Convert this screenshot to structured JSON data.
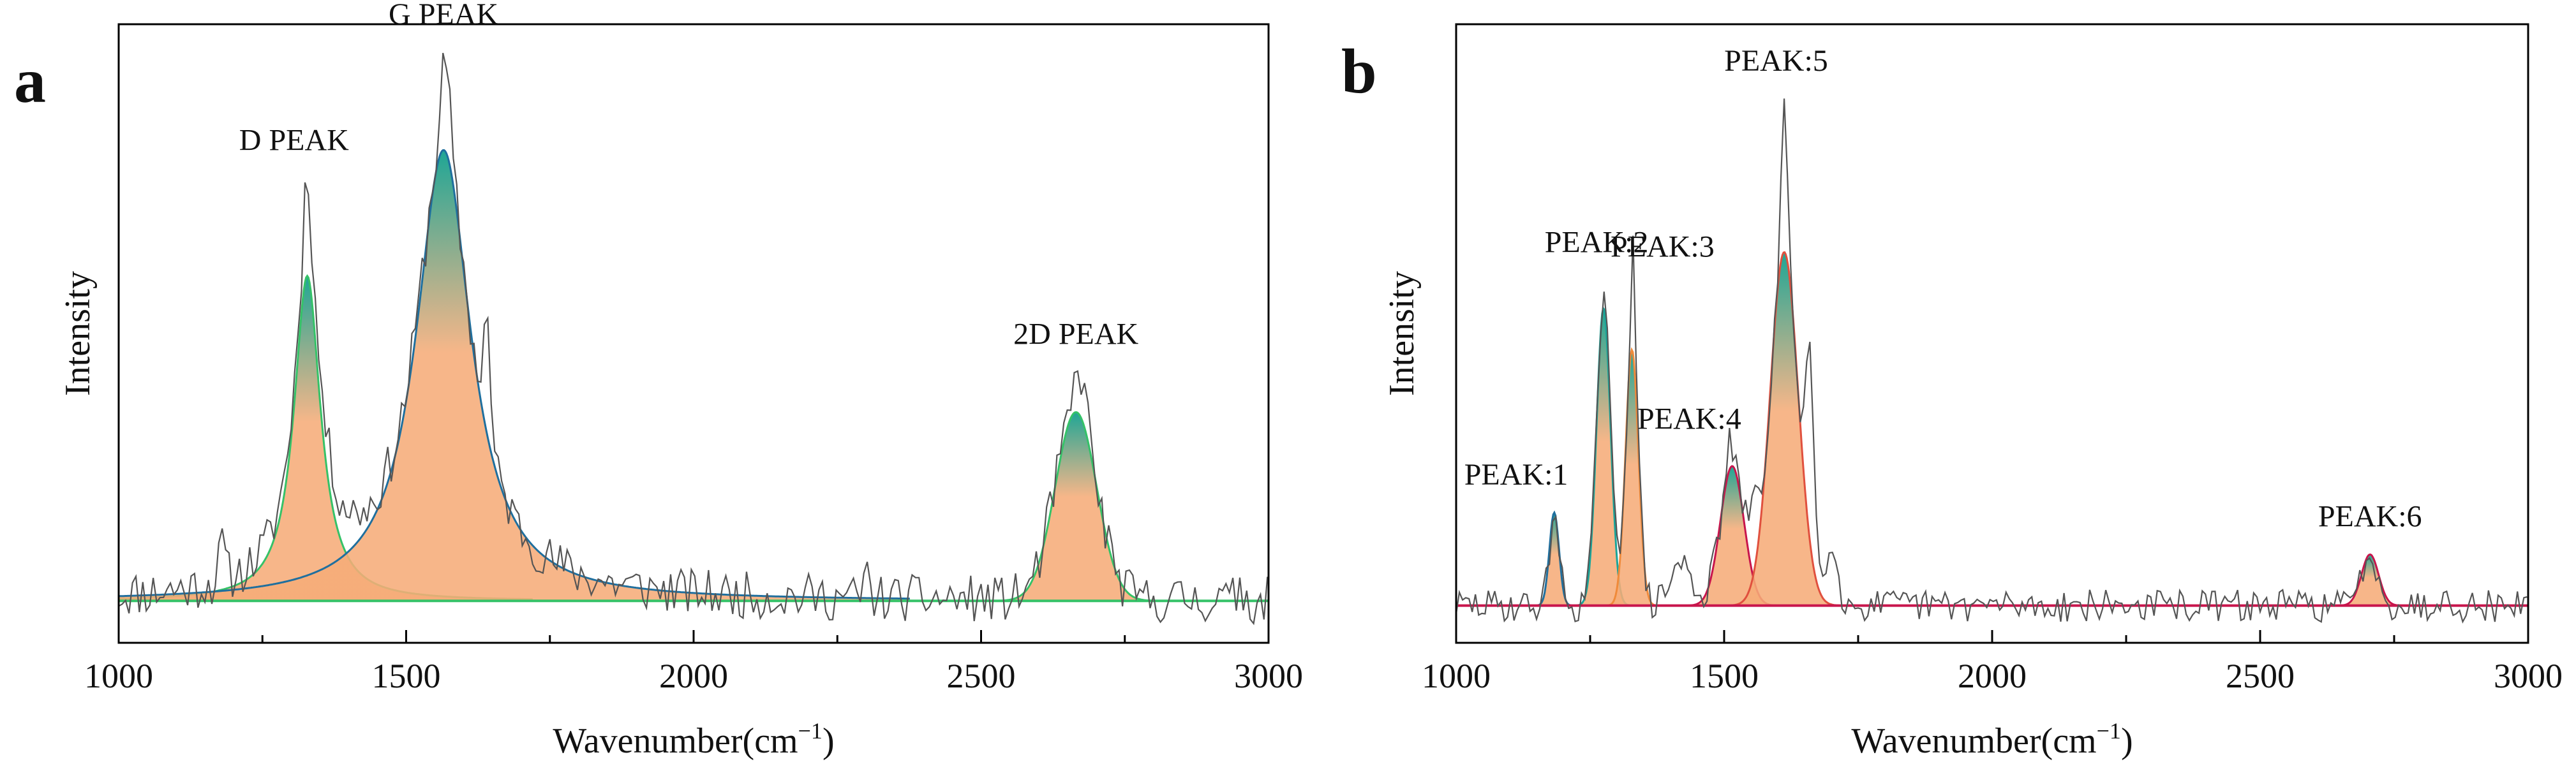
{
  "colors": {
    "orange_fill": "#f6ac78",
    "teal": "#0b9e8c",
    "green_line": "#35c268",
    "blue_line": "#1f6f9e",
    "orange_line": "#f08a3a",
    "crimson_line": "#c8154c",
    "raw_line": "#555555",
    "axis": "#000000"
  },
  "chart_data": [
    {
      "type": "line",
      "panel_label": "a",
      "title": "",
      "xlabel": "Wavenumber(cm",
      "xlabel_sup": "−1",
      "xlabel_close": ")",
      "ylabel": "Intensity",
      "xlim": [
        1000,
        3000
      ],
      "ylim": [
        -0.08,
        1.1
      ],
      "x_ticks": [
        "1000",
        "1500",
        "2000",
        "2500",
        "3000"
      ],
      "x_tick_values": [
        1000,
        1500,
        2000,
        2500,
        3000
      ],
      "x_minor_step": 250,
      "baseline": 0.0,
      "noise": {
        "x_start": 1000,
        "x_end": 3000,
        "step": 6,
        "amplitude": 0.045,
        "seed": 11
      },
      "raw_extras": [
        {
          "x": 1640,
          "height": 0.22,
          "width": 6
        },
        {
          "x": 1180,
          "height": 0.07,
          "width": 5
        },
        {
          "x": 2680,
          "height": 0.06,
          "width": 6
        },
        {
          "x": 2300,
          "height": 0.05,
          "width": 4
        },
        {
          "x": 2950,
          "height": 0.06,
          "width": 3
        }
      ],
      "peaks": [
        {
          "name": "D PEAK",
          "center": 1328,
          "height": 0.62,
          "width": 28,
          "shape": "lorentzian",
          "line_color": "#35c268",
          "label_x": 1305,
          "label_value": 0.86
        },
        {
          "name": "G PEAK",
          "center": 1565,
          "height": 0.86,
          "width": 58,
          "shape": "lorentzian",
          "line_color": "#1f6f9e",
          "label_x": 1565,
          "label_value": 1.1
        },
        {
          "name": "2D PEAK",
          "center": 2665,
          "height": 0.36,
          "width": 36,
          "shape": "gaussian",
          "line_color": "#35c268",
          "label_x": 2665,
          "label_value": 0.49
        }
      ],
      "raw_peak_boost": [
        {
          "x": 1328,
          "height": 0.15,
          "width": 6
        },
        {
          "x": 1568,
          "height": 0.16,
          "width": 8
        },
        {
          "x": 2668,
          "height": 0.06,
          "width": 8
        }
      ],
      "peak_labels": [
        "D PEAK",
        "G PEAK",
        "2D PEAK"
      ]
    },
    {
      "type": "line",
      "panel_label": "b",
      "title": "",
      "xlabel": "Wavenumber(cm",
      "xlabel_sup": "−1",
      "xlabel_close": ")",
      "ylabel": "Intensity",
      "xlim": [
        1000,
        3000
      ],
      "ylim": [
        -0.08,
        1.25
      ],
      "x_ticks": [
        "1000",
        "1500",
        "2000",
        "2500",
        "3000"
      ],
      "x_tick_values": [
        1000,
        1500,
        2000,
        2500,
        3000
      ],
      "x_minor_step": 250,
      "baseline": 0.0,
      "noise": {
        "x_start": 1000,
        "x_end": 3000,
        "step": 6,
        "amplitude": 0.035,
        "seed": 29
      },
      "raw_extras": [
        {
          "x": 1420,
          "height": 0.09,
          "width": 20
        },
        {
          "x": 1660,
          "height": 0.42,
          "width": 8
        },
        {
          "x": 1700,
          "height": 0.15,
          "width": 10
        },
        {
          "x": 1555,
          "height": 0.12,
          "width": 8
        },
        {
          "x": 2850,
          "height": 0.05,
          "width": 5
        }
      ],
      "peaks": [
        {
          "name": "PEAK:1",
          "center": 1183,
          "height": 0.2,
          "width": 9,
          "shape": "gaussian",
          "line_color": "#1f6f9e",
          "label_x": 1112,
          "label_value": 0.26
        },
        {
          "name": "PEAK:2",
          "center": 1275,
          "height": 0.64,
          "width": 13,
          "shape": "gaussian",
          "line_color": "#18a59a",
          "label_x": 1262,
          "label_value": 0.76
        },
        {
          "name": "PEAK:3",
          "center": 1328,
          "height": 0.55,
          "width": 12,
          "shape": "gaussian",
          "line_color": "#f08a3a",
          "label_x": 1385,
          "label_value": 0.75
        },
        {
          "name": "PEAK:4",
          "center": 1515,
          "height": 0.3,
          "width": 22,
          "shape": "gaussian",
          "line_color": "#c8154c",
          "label_x": 1435,
          "label_value": 0.38
        },
        {
          "name": "PEAK:5",
          "center": 1612,
          "height": 0.76,
          "width": 26,
          "shape": "gaussian",
          "line_color": "#e0503e",
          "label_x": 1597,
          "label_value": 1.15
        },
        {
          "name": "PEAK:6",
          "center": 2705,
          "height": 0.11,
          "width": 16,
          "shape": "gaussian",
          "line_color": "#c8154c",
          "label_x": 2705,
          "label_value": 0.17
        }
      ],
      "raw_peak_boost": [
        {
          "x": 1275,
          "height": 0.03,
          "width": 5
        },
        {
          "x": 1330,
          "height": 0.25,
          "width": 4
        },
        {
          "x": 1612,
          "height": 0.33,
          "width": 5
        },
        {
          "x": 1510,
          "height": 0.06,
          "width": 5
        }
      ],
      "peak_labels": [
        "PEAK:1",
        "PEAK:2",
        "PEAK:3",
        "PEAK:4",
        "PEAK:5",
        "PEAK:6"
      ]
    }
  ]
}
